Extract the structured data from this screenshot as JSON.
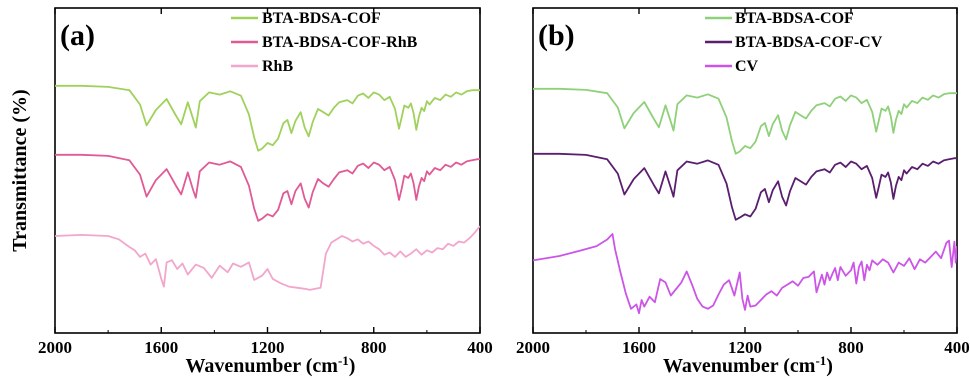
{
  "chart_data": [
    {
      "type": "line",
      "panel_label": "(a)",
      "xlabel": "Wavenumber (cm",
      "xlabel_sup": "-1",
      "xlabel_tail": ")",
      "ylabel": "Transmittance (%)",
      "xlim": [
        2000,
        400
      ],
      "x_reversed": true,
      "xticks": [
        2000,
        1600,
        1200,
        800,
        400
      ],
      "y_ticks_shown": false,
      "grid": false,
      "legend_position": "top-right",
      "series": [
        {
          "name": "BTA-BDSA-COF",
          "color": "#9fd15b",
          "x": [
            2000,
            1900,
            1800,
            1720,
            1680,
            1655,
            1620,
            1580,
            1545,
            1525,
            1500,
            1480,
            1470,
            1455,
            1420,
            1380,
            1340,
            1300,
            1270,
            1250,
            1235,
            1220,
            1200,
            1180,
            1160,
            1140,
            1125,
            1110,
            1095,
            1075,
            1060,
            1045,
            1030,
            1010,
            990,
            970,
            950,
            930,
            900,
            880,
            860,
            840,
            820,
            800,
            780,
            760,
            740,
            720,
            705,
            695,
            685,
            670,
            660,
            650,
            640,
            630,
            620,
            610,
            600,
            590,
            570,
            550,
            530,
            510,
            490,
            470,
            450,
            430,
            410,
            400
          ],
          "y": [
            0.2,
            0.2,
            0.1,
            -0.2,
            -1.5,
            -3.4,
            -2.0,
            -1.0,
            -2.5,
            -3.3,
            -1.3,
            -2.8,
            -3.6,
            -1.2,
            -0.4,
            -0.6,
            -0.3,
            -0.7,
            -2.4,
            -4.5,
            -5.7,
            -5.5,
            -5.0,
            -5.2,
            -4.6,
            -3.2,
            -2.9,
            -4.1,
            -3.0,
            -2.2,
            -3.6,
            -4.4,
            -3.1,
            -1.9,
            -2.2,
            -2.5,
            -1.8,
            -1.3,
            -1.1,
            -1.4,
            -0.7,
            -0.5,
            -0.9,
            -0.4,
            -0.6,
            -1.1,
            -0.8,
            -1.9,
            -3.7,
            -2.7,
            -1.6,
            -1.8,
            -1.4,
            -2.3,
            -3.8,
            -2.6,
            -1.8,
            -2.1,
            -1.2,
            -1.5,
            -0.9,
            -1.1,
            -0.6,
            -0.8,
            -0.4,
            -0.6,
            -0.3,
            -0.2,
            -0.2,
            -0.2
          ]
        },
        {
          "name": "BTA-BDSA-COF-RhB",
          "color": "#e05a96",
          "x": [
            2000,
            1900,
            1800,
            1720,
            1680,
            1655,
            1620,
            1580,
            1545,
            1525,
            1500,
            1480,
            1470,
            1455,
            1420,
            1380,
            1340,
            1300,
            1270,
            1250,
            1235,
            1220,
            1200,
            1180,
            1160,
            1140,
            1125,
            1110,
            1095,
            1075,
            1060,
            1045,
            1030,
            1010,
            990,
            970,
            950,
            930,
            900,
            880,
            860,
            840,
            820,
            800,
            780,
            760,
            740,
            720,
            705,
            695,
            685,
            670,
            660,
            650,
            640,
            630,
            620,
            610,
            600,
            590,
            570,
            550,
            530,
            510,
            490,
            470,
            450,
            430,
            410,
            400
          ],
          "y": [
            0.2,
            0.2,
            0.1,
            -0.3,
            -1.6,
            -3.6,
            -2.1,
            -1.1,
            -2.6,
            -3.4,
            -1.4,
            -3.0,
            -3.7,
            -1.3,
            -0.5,
            -0.7,
            -0.4,
            -0.9,
            -2.6,
            -4.7,
            -5.8,
            -5.6,
            -5.2,
            -5.4,
            -4.8,
            -3.3,
            -3.1,
            -4.3,
            -3.1,
            -2.4,
            -3.8,
            -4.6,
            -3.2,
            -2.0,
            -2.4,
            -2.7,
            -2.0,
            -1.4,
            -1.2,
            -1.5,
            -0.8,
            -0.6,
            -1.0,
            -0.5,
            -0.7,
            -1.2,
            -0.9,
            -2.1,
            -3.9,
            -2.9,
            -1.7,
            -1.9,
            -1.5,
            -2.4,
            -3.9,
            -2.7,
            -1.9,
            -2.2,
            -1.3,
            -1.6,
            -1.0,
            -1.2,
            -0.7,
            -0.9,
            -0.5,
            -0.7,
            -0.4,
            -0.3,
            -0.2,
            -0.2
          ]
        },
        {
          "name": "RhB",
          "color": "#f2a6cc",
          "x": [
            2000,
            1900,
            1800,
            1760,
            1720,
            1700,
            1680,
            1660,
            1640,
            1620,
            1600,
            1590,
            1580,
            1560,
            1540,
            1520,
            1500,
            1470,
            1440,
            1410,
            1380,
            1350,
            1330,
            1300,
            1270,
            1250,
            1220,
            1200,
            1180,
            1150,
            1120,
            1090,
            1060,
            1040,
            1020,
            1000,
            980,
            960,
            940,
            920,
            900,
            880,
            860,
            840,
            820,
            800,
            780,
            760,
            740,
            720,
            700,
            680,
            660,
            640,
            620,
            600,
            580,
            560,
            540,
            520,
            500,
            480,
            460,
            440,
            420,
            400
          ],
          "y": [
            0.0,
            0.1,
            0.0,
            -0.3,
            -1.0,
            -1.3,
            -1.9,
            -1.6,
            -2.6,
            -2.1,
            -3.9,
            -4.6,
            -2.4,
            -2.2,
            -3.0,
            -2.5,
            -3.5,
            -2.6,
            -2.9,
            -3.8,
            -2.7,
            -3.3,
            -2.5,
            -2.8,
            -2.4,
            -4.0,
            -3.6,
            -3.0,
            -3.9,
            -4.3,
            -4.6,
            -4.7,
            -4.8,
            -4.9,
            -4.8,
            -4.7,
            -1.6,
            -0.6,
            -0.3,
            0.0,
            -0.2,
            -0.5,
            -0.3,
            -0.7,
            -0.5,
            -0.9,
            -1.2,
            -1.7,
            -1.5,
            -1.9,
            -1.4,
            -1.9,
            -1.6,
            -1.2,
            -1.7,
            -1.3,
            -1.5,
            -1.1,
            -1.2,
            -0.7,
            -0.9,
            -0.5,
            -0.6,
            -0.2,
            0.3,
            0.9
          ]
        }
      ]
    },
    {
      "type": "line",
      "panel_label": "(b)",
      "xlabel": "Wavenumber (cm",
      "xlabel_sup": "-1",
      "xlabel_tail": ")",
      "ylabel": "",
      "xlim": [
        2000,
        400
      ],
      "x_reversed": true,
      "xticks": [
        2000,
        1600,
        1200,
        800,
        400
      ],
      "y_ticks_shown": false,
      "grid": false,
      "legend_position": "top-right",
      "series": [
        {
          "name": "BTA-BDSA-COF",
          "color": "#8fd07a",
          "x": [
            2000,
            1900,
            1800,
            1720,
            1680,
            1655,
            1620,
            1580,
            1545,
            1525,
            1500,
            1480,
            1470,
            1455,
            1420,
            1380,
            1340,
            1300,
            1270,
            1250,
            1235,
            1220,
            1200,
            1180,
            1160,
            1140,
            1125,
            1110,
            1095,
            1075,
            1060,
            1045,
            1030,
            1010,
            990,
            970,
            950,
            930,
            900,
            880,
            860,
            840,
            820,
            800,
            780,
            760,
            740,
            720,
            705,
            695,
            685,
            670,
            660,
            650,
            640,
            630,
            620,
            610,
            600,
            590,
            570,
            550,
            530,
            510,
            490,
            470,
            450,
            430,
            410,
            400
          ],
          "y": [
            0.2,
            0.2,
            0.1,
            -0.2,
            -1.5,
            -3.4,
            -2.0,
            -1.0,
            -2.5,
            -3.3,
            -1.3,
            -2.8,
            -3.6,
            -1.2,
            -0.4,
            -0.6,
            -0.3,
            -0.7,
            -2.4,
            -4.5,
            -5.7,
            -5.5,
            -5.0,
            -5.2,
            -4.6,
            -3.2,
            -2.9,
            -4.1,
            -3.0,
            -2.2,
            -3.6,
            -4.4,
            -3.1,
            -1.9,
            -2.2,
            -2.5,
            -1.8,
            -1.3,
            -1.1,
            -1.4,
            -0.7,
            -0.5,
            -0.9,
            -0.4,
            -0.6,
            -1.1,
            -0.8,
            -1.9,
            -3.7,
            -2.7,
            -1.6,
            -1.8,
            -1.4,
            -2.3,
            -3.8,
            -2.6,
            -1.8,
            -2.1,
            -1.2,
            -1.5,
            -0.9,
            -1.1,
            -0.6,
            -0.8,
            -0.4,
            -0.6,
            -0.3,
            -0.2,
            -0.2,
            -0.2
          ]
        },
        {
          "name": "BTA-BDSA-COF-CV",
          "color": "#5a1e6e",
          "x": [
            2000,
            1900,
            1800,
            1720,
            1680,
            1655,
            1620,
            1580,
            1545,
            1525,
            1500,
            1480,
            1470,
            1455,
            1420,
            1380,
            1340,
            1300,
            1270,
            1250,
            1235,
            1220,
            1200,
            1180,
            1160,
            1140,
            1125,
            1110,
            1095,
            1075,
            1060,
            1045,
            1030,
            1010,
            990,
            970,
            950,
            930,
            900,
            880,
            860,
            840,
            820,
            800,
            780,
            760,
            740,
            720,
            705,
            695,
            685,
            670,
            660,
            650,
            640,
            630,
            620,
            610,
            600,
            590,
            570,
            550,
            530,
            510,
            490,
            470,
            450,
            430,
            410,
            400
          ],
          "y": [
            0.2,
            0.2,
            0.1,
            -0.3,
            -1.6,
            -3.5,
            -2.1,
            -1.1,
            -2.6,
            -3.4,
            -1.4,
            -2.9,
            -3.7,
            -1.3,
            -0.5,
            -0.7,
            -0.4,
            -0.8,
            -2.5,
            -4.6,
            -5.8,
            -5.6,
            -5.3,
            -5.5,
            -4.8,
            -3.3,
            -3.0,
            -4.2,
            -3.1,
            -2.3,
            -3.7,
            -4.5,
            -3.2,
            -2.0,
            -2.3,
            -2.6,
            -1.9,
            -1.4,
            -1.2,
            -1.5,
            -0.8,
            -0.6,
            -1.0,
            -0.5,
            -0.7,
            -1.2,
            -0.9,
            -2.0,
            -3.8,
            -2.8,
            -1.7,
            -1.9,
            -1.5,
            -2.4,
            -3.9,
            -2.7,
            -1.9,
            -2.2,
            -1.3,
            -1.6,
            -1.0,
            -1.2,
            -0.7,
            -0.9,
            -0.5,
            -0.7,
            -0.4,
            -0.3,
            -0.2,
            -0.2
          ]
        },
        {
          "name": "CV",
          "color": "#cc55e8",
          "x": [
            2000,
            1900,
            1820,
            1760,
            1720,
            1700,
            1690,
            1670,
            1650,
            1630,
            1610,
            1600,
            1590,
            1580,
            1560,
            1540,
            1520,
            1500,
            1480,
            1460,
            1440,
            1420,
            1400,
            1380,
            1360,
            1340,
            1320,
            1300,
            1280,
            1260,
            1240,
            1220,
            1210,
            1200,
            1190,
            1180,
            1160,
            1140,
            1120,
            1100,
            1080,
            1060,
            1040,
            1020,
            1000,
            980,
            960,
            940,
            930,
            920,
            910,
            900,
            890,
            880,
            870,
            860,
            850,
            840,
            820,
            800,
            790,
            780,
            770,
            760,
            750,
            740,
            730,
            720,
            700,
            680,
            660,
            640,
            620,
            600,
            580,
            560,
            540,
            520,
            500,
            480,
            460,
            440,
            430,
            420,
            410,
            405,
            400
          ],
          "y": [
            -0.4,
            0.0,
            0.5,
            0.9,
            1.5,
            2.0,
            0.6,
            -1.5,
            -3.4,
            -4.8,
            -4.4,
            -5.2,
            -4.0,
            -4.6,
            -3.7,
            -4.2,
            -2.1,
            -2.4,
            -3.6,
            -3.0,
            -2.4,
            -1.4,
            -2.6,
            -3.9,
            -4.6,
            -4.8,
            -4.5,
            -3.5,
            -2.6,
            -2.2,
            -3.6,
            -1.5,
            -3.9,
            -4.9,
            -3.6,
            -4.6,
            -4.5,
            -4.0,
            -3.5,
            -3.2,
            -3.6,
            -2.9,
            -2.6,
            -2.3,
            -2.7,
            -2.0,
            -1.9,
            -1.4,
            -3.3,
            -2.5,
            -1.7,
            -2.6,
            -1.5,
            -2.2,
            -1.6,
            -1.1,
            -2.2,
            -1.0,
            -1.8,
            -1.3,
            -0.6,
            -2.5,
            -1.0,
            -0.5,
            -2.2,
            -0.8,
            -1.3,
            -0.4,
            -0.8,
            -0.3,
            -0.6,
            -1.5,
            -0.6,
            -0.9,
            -0.2,
            -1.2,
            -0.3,
            -0.6,
            -0.1,
            0.4,
            -0.2,
            1.2,
            1.4,
            -1.0,
            1.3,
            -0.6,
            0.9
          ]
        }
      ]
    }
  ]
}
